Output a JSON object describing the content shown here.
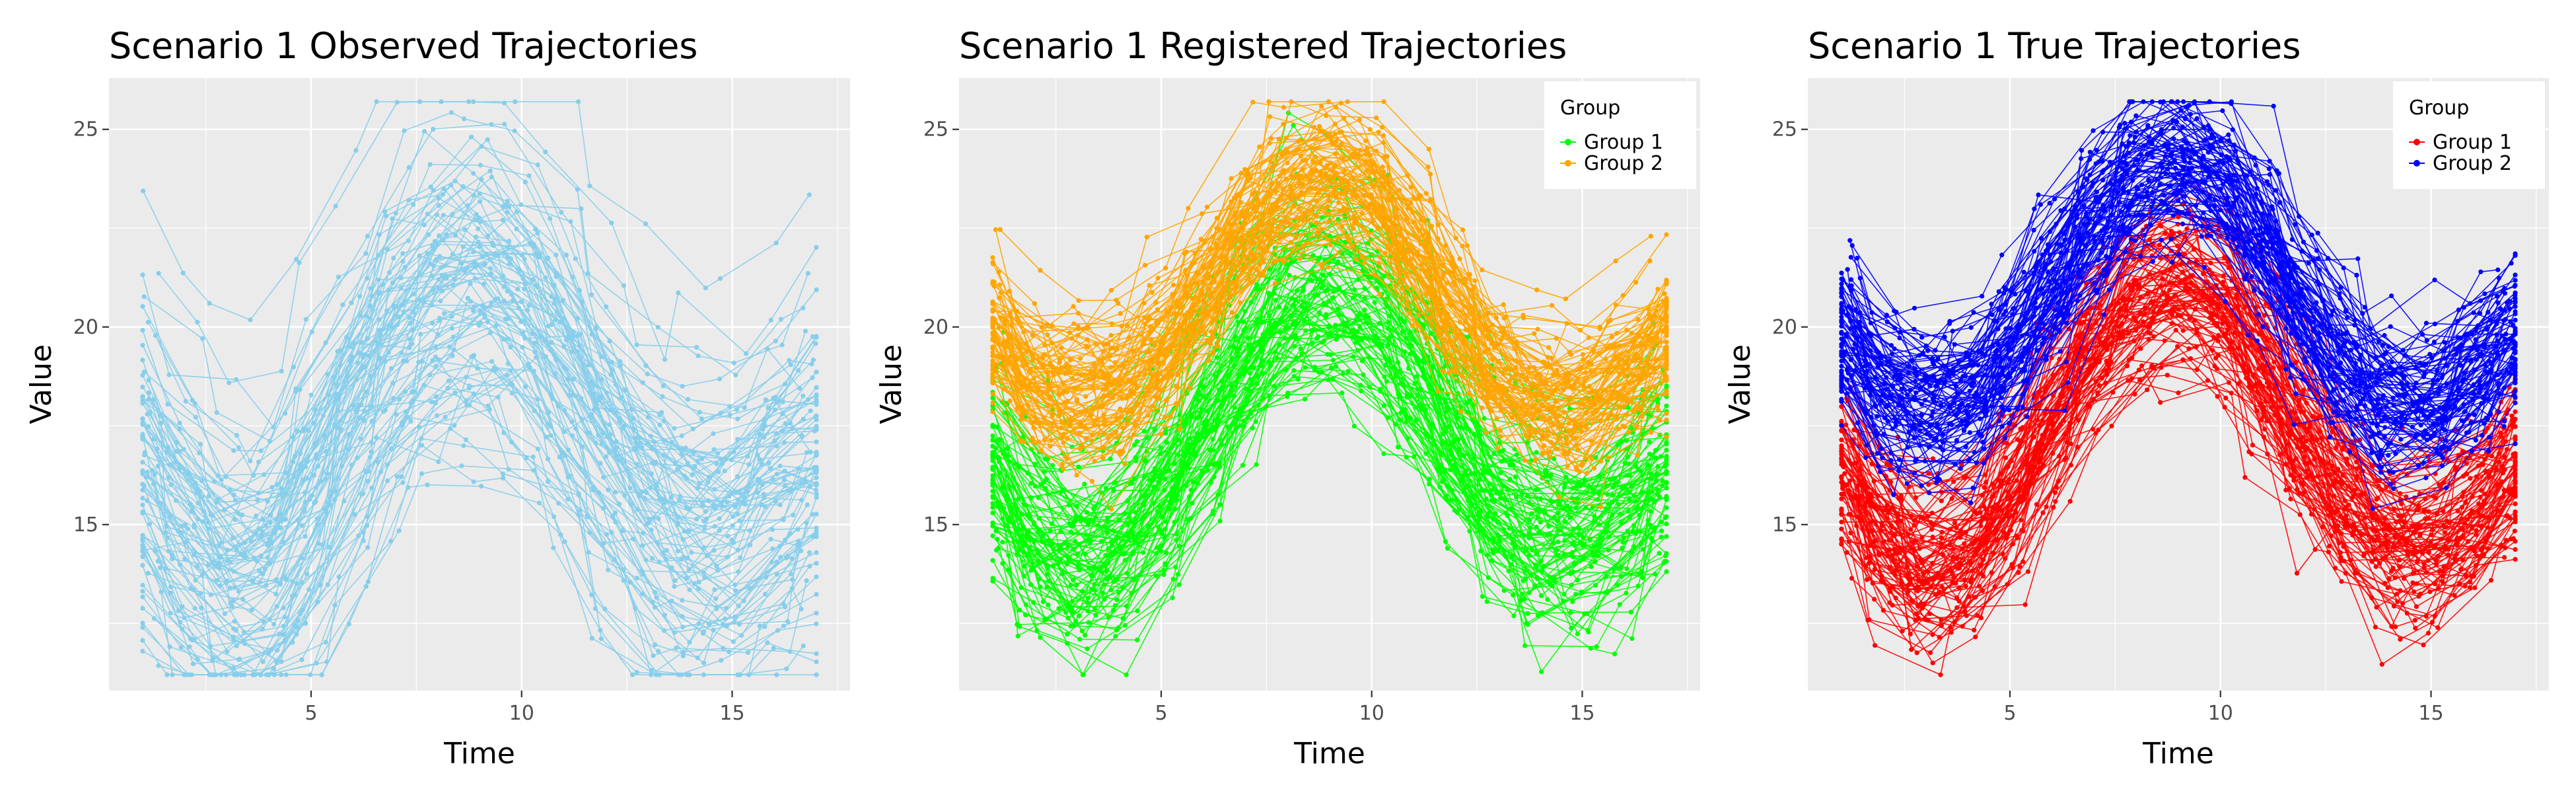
{
  "chart_data": [
    {
      "type": "line",
      "title": "Scenario 1 Observed Trajectories",
      "xlabel": "Time",
      "ylabel": "Value",
      "xlim": [
        0.2,
        17.8
      ],
      "ylim": [
        10.8,
        26.3
      ],
      "x_ticks": [
        5,
        10,
        15
      ],
      "y_ticks": [
        15,
        20,
        25
      ],
      "x_minor_ticks": [
        2.5,
        7.5,
        12.5,
        17.5
      ],
      "y_minor_ticks": [
        12.5,
        17.5,
        22.5
      ],
      "grid": true,
      "legend": null,
      "x": [
        1,
        2,
        3,
        4,
        5,
        6,
        7,
        8,
        9,
        10,
        11,
        12,
        13,
        14,
        15,
        16,
        17
      ],
      "series": [
        {
          "color": "#87ceeb",
          "mean": [
            17.0,
            15.4,
            14.2,
            14.4,
            16.1,
            18.5,
            20.4,
            21.4,
            21.7,
            21.1,
            19.6,
            17.6,
            16.1,
            15.3,
            15.4,
            16.4,
            17.0
          ],
          "spread": 4.5
        }
      ]
    },
    {
      "type": "line",
      "title": "Scenario 1 Registered Trajectories",
      "xlabel": "Time",
      "ylabel": "Value",
      "xlim": [
        0.2,
        17.8
      ],
      "ylim": [
        10.8,
        26.3
      ],
      "x_ticks": [
        5,
        10,
        15
      ],
      "y_ticks": [
        15,
        20,
        25
      ],
      "x_minor_ticks": [
        2.5,
        7.5,
        12.5,
        17.5
      ],
      "y_minor_ticks": [
        12.5,
        17.5,
        22.5
      ],
      "grid": true,
      "legend": {
        "title": "Group",
        "position": "top-right"
      },
      "x": [
        1,
        2,
        3,
        4,
        5,
        6,
        7,
        8,
        9,
        10,
        11,
        12,
        13,
        14,
        15,
        16,
        17
      ],
      "series": [
        {
          "name": "Group 1",
          "color": "#00ff00",
          "mean": [
            16.3,
            14.7,
            14.2,
            14.6,
            15.8,
            17.6,
            19.4,
            20.6,
            21.0,
            20.5,
            19.0,
            17.1,
            15.6,
            14.8,
            14.8,
            15.5,
            16.3
          ],
          "spread": 2.2
        },
        {
          "name": "Group 2",
          "color": "#ffa500",
          "mean": [
            20.0,
            18.8,
            18.4,
            18.6,
            19.5,
            21.0,
            22.6,
            23.6,
            24.0,
            23.5,
            22.1,
            20.5,
            19.1,
            18.3,
            18.3,
            19.0,
            19.8
          ],
          "spread": 1.5
        }
      ]
    },
    {
      "type": "line",
      "title": "Scenario 1 True Trajectories",
      "xlabel": "Time",
      "ylabel": "Value",
      "xlim": [
        0.2,
        17.8
      ],
      "ylim": [
        10.8,
        26.3
      ],
      "x_ticks": [
        5,
        10,
        15
      ],
      "y_ticks": [
        15,
        20,
        25
      ],
      "x_minor_ticks": [
        2.5,
        7.5,
        12.5,
        17.5
      ],
      "y_minor_ticks": [
        12.5,
        17.5,
        22.5
      ],
      "grid": true,
      "legend": {
        "title": "Group",
        "position": "top-right"
      },
      "x": [
        1,
        2,
        3,
        4,
        5,
        6,
        7,
        8,
        9,
        10,
        11,
        12,
        13,
        14,
        15,
        16,
        17
      ],
      "series": [
        {
          "name": "Group 1",
          "color": "#ff0000",
          "mean": [
            16.3,
            14.6,
            13.8,
            14.3,
            15.7,
            17.6,
            19.4,
            20.6,
            21.0,
            20.5,
            19.0,
            17.1,
            15.6,
            14.6,
            14.5,
            15.3,
            16.3
          ],
          "spread": 1.9
        },
        {
          "name": "Group 2",
          "color": "#0000ff",
          "mean": [
            19.7,
            18.3,
            17.9,
            18.2,
            19.3,
            21.0,
            22.7,
            23.8,
            24.1,
            23.6,
            22.1,
            20.3,
            18.9,
            18.1,
            18.0,
            18.8,
            19.7
          ],
          "spread": 1.5
        }
      ]
    }
  ]
}
